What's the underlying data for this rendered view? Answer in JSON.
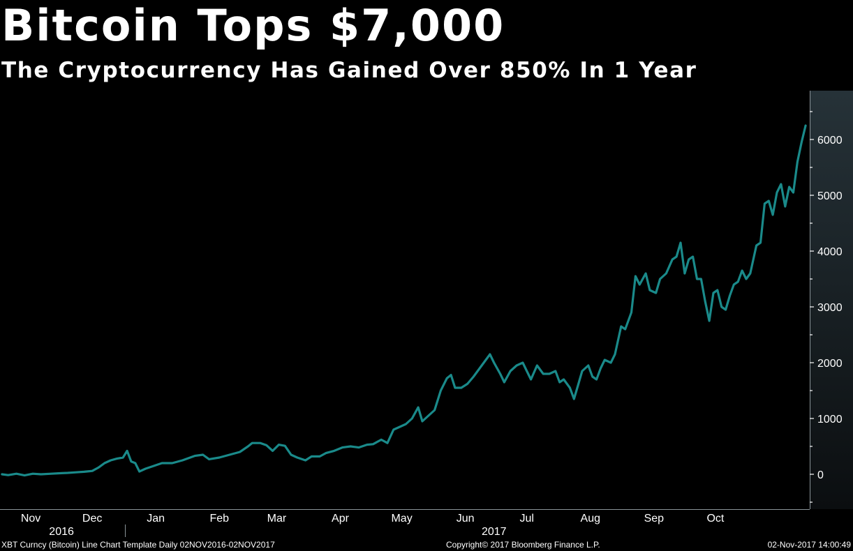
{
  "chart_data": {
    "type": "line",
    "title": "Bitcoin Tops $7,000",
    "subtitle": "The Cryptocurrency Has Gained Over 850% In 1 Year",
    "series": [
      {
        "name": "XBT Curncy (Bitcoin)",
        "color": "#1a8a8a",
        "points": [
          [
            "2016-11-01",
            0
          ],
          [
            "2016-11-04",
            -15
          ],
          [
            "2016-11-08",
            10
          ],
          [
            "2016-11-12",
            -20
          ],
          [
            "2016-11-16",
            10
          ],
          [
            "2016-11-20",
            0
          ],
          [
            "2016-11-25",
            10
          ],
          [
            "2016-11-30",
            20
          ],
          [
            "2016-12-03",
            25
          ],
          [
            "2016-12-07",
            35
          ],
          [
            "2016-12-11",
            45
          ],
          [
            "2016-12-15",
            60
          ],
          [
            "2016-12-18",
            120
          ],
          [
            "2016-12-21",
            200
          ],
          [
            "2016-12-24",
            250
          ],
          [
            "2016-12-27",
            280
          ],
          [
            "2016-12-30",
            300
          ],
          [
            "2017-01-01",
            420
          ],
          [
            "2017-01-03",
            230
          ],
          [
            "2017-01-05",
            200
          ],
          [
            "2017-01-07",
            50
          ],
          [
            "2017-01-10",
            100
          ],
          [
            "2017-01-14",
            150
          ],
          [
            "2017-01-18",
            200
          ],
          [
            "2017-01-23",
            200
          ],
          [
            "2017-01-28",
            250
          ],
          [
            "2017-02-03",
            330
          ],
          [
            "2017-02-07",
            350
          ],
          [
            "2017-02-10",
            270
          ],
          [
            "2017-02-15",
            300
          ],
          [
            "2017-02-20",
            350
          ],
          [
            "2017-02-25",
            400
          ],
          [
            "2017-03-01",
            500
          ],
          [
            "2017-03-03",
            560
          ],
          [
            "2017-03-07",
            560
          ],
          [
            "2017-03-10",
            520
          ],
          [
            "2017-03-13",
            420
          ],
          [
            "2017-03-16",
            530
          ],
          [
            "2017-03-19",
            510
          ],
          [
            "2017-03-22",
            350
          ],
          [
            "2017-03-25",
            300
          ],
          [
            "2017-03-29",
            250
          ],
          [
            "2017-04-01",
            320
          ],
          [
            "2017-04-05",
            320
          ],
          [
            "2017-04-08",
            380
          ],
          [
            "2017-04-12",
            420
          ],
          [
            "2017-04-16",
            480
          ],
          [
            "2017-04-20",
            500
          ],
          [
            "2017-04-24",
            480
          ],
          [
            "2017-04-28",
            530
          ],
          [
            "2017-05-01",
            540
          ],
          [
            "2017-05-05",
            620
          ],
          [
            "2017-05-08",
            560
          ],
          [
            "2017-05-11",
            800
          ],
          [
            "2017-05-14",
            850
          ],
          [
            "2017-05-17",
            900
          ],
          [
            "2017-05-20",
            1000
          ],
          [
            "2017-05-23",
            1200
          ],
          [
            "2017-05-25",
            950
          ],
          [
            "2017-05-28",
            1050
          ],
          [
            "2017-05-31",
            1150
          ],
          [
            "2017-06-03",
            1500
          ],
          [
            "2017-06-06",
            1720
          ],
          [
            "2017-06-08",
            1780
          ],
          [
            "2017-06-10",
            1550
          ],
          [
            "2017-06-13",
            1550
          ],
          [
            "2017-06-16",
            1620
          ],
          [
            "2017-06-19",
            1750
          ],
          [
            "2017-06-22",
            1900
          ],
          [
            "2017-06-25",
            2050
          ],
          [
            "2017-06-27",
            2150
          ],
          [
            "2017-06-29",
            2000
          ],
          [
            "2017-07-02",
            1800
          ],
          [
            "2017-07-04",
            1650
          ],
          [
            "2017-07-07",
            1850
          ],
          [
            "2017-07-10",
            1950
          ],
          [
            "2017-07-13",
            2000
          ],
          [
            "2017-07-15",
            1850
          ],
          [
            "2017-07-17",
            1700
          ],
          [
            "2017-07-20",
            1950
          ],
          [
            "2017-07-23",
            1800
          ],
          [
            "2017-07-26",
            1800
          ],
          [
            "2017-07-29",
            1850
          ],
          [
            "2017-07-31",
            1650
          ],
          [
            "2017-08-02",
            1700
          ],
          [
            "2017-08-05",
            1550
          ],
          [
            "2017-08-07",
            1350
          ],
          [
            "2017-08-09",
            1600
          ],
          [
            "2017-08-11",
            1850
          ],
          [
            "2017-08-14",
            1950
          ],
          [
            "2017-08-16",
            1750
          ],
          [
            "2017-08-18",
            1700
          ],
          [
            "2017-08-20",
            1900
          ],
          [
            "2017-08-22",
            2050
          ],
          [
            "2017-08-25",
            2000
          ],
          [
            "2017-08-27",
            2150
          ],
          [
            "2017-08-30",
            2650
          ],
          [
            "2017-09-01",
            2600
          ],
          [
            "2017-09-04",
            2900
          ],
          [
            "2017-09-06",
            3550
          ],
          [
            "2017-09-08",
            3400
          ],
          [
            "2017-09-11",
            3600
          ],
          [
            "2017-09-13",
            3300
          ],
          [
            "2017-09-16",
            3250
          ],
          [
            "2017-09-18",
            3500
          ],
          [
            "2017-09-21",
            3600
          ],
          [
            "2017-09-24",
            3850
          ],
          [
            "2017-09-26",
            3900
          ],
          [
            "2017-09-28",
            4150
          ],
          [
            "2017-09-30",
            3600
          ],
          [
            "2017-10-02",
            3850
          ],
          [
            "2017-10-04",
            3900
          ],
          [
            "2017-10-06",
            3500
          ],
          [
            "2017-10-08",
            3500
          ],
          [
            "2017-10-10",
            3100
          ],
          [
            "2017-10-12",
            2750
          ],
          [
            "2017-10-14",
            3250
          ],
          [
            "2017-10-16",
            3300
          ],
          [
            "2017-10-18",
            3000
          ],
          [
            "2017-10-20",
            2950
          ],
          [
            "2017-10-22",
            3200
          ],
          [
            "2017-10-24",
            3400
          ],
          [
            "2017-10-26",
            3450
          ],
          [
            "2017-10-28",
            3650
          ],
          [
            "2017-10-30",
            3500
          ],
          [
            "2017-11-01",
            3600
          ],
          [
            "2017-11-04",
            4100
          ],
          [
            "2017-11-06",
            4150
          ],
          [
            "2017-11-08",
            4850
          ],
          [
            "2017-11-10",
            4900
          ],
          [
            "2017-11-12",
            4650
          ],
          [
            "2017-11-14",
            5050
          ],
          [
            "2017-11-16",
            5200
          ],
          [
            "2017-11-18",
            4800
          ],
          [
            "2017-11-20",
            5150
          ],
          [
            "2017-11-22",
            5050
          ],
          [
            "2017-11-24",
            5600
          ],
          [
            "2017-11-26",
            5950
          ],
          [
            "2017-11-28",
            6250
          ]
        ]
      }
    ],
    "x_range": [
      "2016-10-31",
      "2017-11-30"
    ],
    "ylim": [
      -600,
      6700
    ],
    "y_ticks": [
      0,
      1000,
      2000,
      3000,
      4000,
      5000,
      6000
    ],
    "x_ticks": [
      {
        "label": "Nov",
        "date": "2016-11-15"
      },
      {
        "label": "Dec",
        "date": "2016-12-15"
      },
      {
        "label": "Jan",
        "date": "2017-01-15"
      },
      {
        "label": "Feb",
        "date": "2017-02-15"
      },
      {
        "label": "Mar",
        "date": "2017-03-15"
      },
      {
        "label": "Apr",
        "date": "2017-04-15"
      },
      {
        "label": "May",
        "date": "2017-05-15"
      },
      {
        "label": "Jun",
        "date": "2017-06-15"
      },
      {
        "label": "Jul",
        "date": "2017-07-15"
      },
      {
        "label": "Aug",
        "date": "2017-08-15"
      },
      {
        "label": "Sep",
        "date": "2017-09-15"
      },
      {
        "label": "Oct",
        "date": "2017-10-15"
      }
    ],
    "year_labels": [
      {
        "label": "2016",
        "date": "2016-11-30"
      },
      {
        "label": "2017",
        "date": "2017-06-29"
      }
    ],
    "year_divider_date": "2016-12-31",
    "xlabel": "",
    "ylabel": "",
    "grid": false,
    "legend": "none"
  },
  "footer": {
    "template": "XBT Curncy (Bitcoin) Line Chart Template  Daily 02NOV2016-02NOV2017",
    "copyright": "Copyright© 2017 Bloomberg Finance L.P.",
    "timestamp": "02-Nov-2017 14:00:49"
  },
  "colors": {
    "background": "#000000",
    "line": "#1a8a8a",
    "axis_panel": "#1a2228",
    "text": "#ffffff"
  }
}
